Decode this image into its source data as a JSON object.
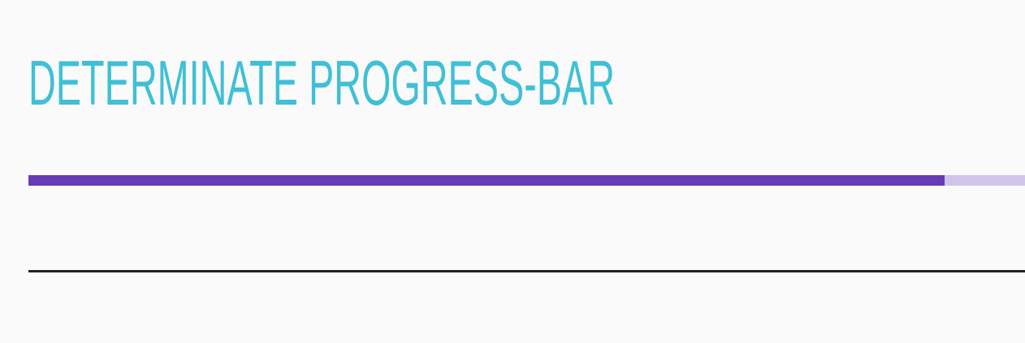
{
  "page": {
    "title": "Determinate progress-bar"
  },
  "progress": {
    "value_percent": 91.9,
    "fill_color": "#673ab7",
    "track_color": "#d1c4e9"
  },
  "colors": {
    "title": "#3fc0d6",
    "background": "#fafafa",
    "divider": "#222222"
  }
}
